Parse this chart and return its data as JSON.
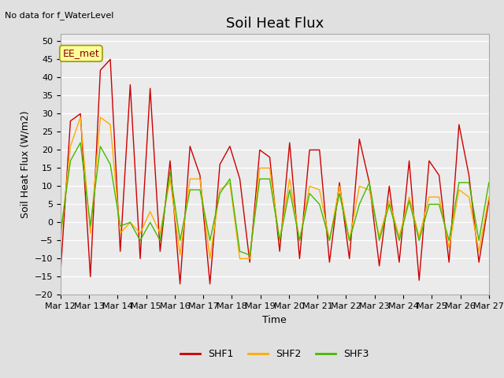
{
  "title": "Soil Heat Flux",
  "top_left_text": "No data for f_WaterLevel",
  "ylabel": "Soil Heat Flux (W/m2)",
  "xlabel": "Time",
  "legend_label": "EE_met",
  "ylim": [
    -20,
    52
  ],
  "yticks": [
    -20,
    -15,
    -10,
    -5,
    0,
    5,
    10,
    15,
    20,
    25,
    30,
    35,
    40,
    45,
    50
  ],
  "xtick_labels": [
    "Mar 12",
    "Mar 13",
    "Mar 14",
    "Mar 15",
    "Mar 16",
    "Mar 17",
    "Mar 18",
    "Mar 19",
    "Mar 20",
    "Mar 21",
    "Mar 22",
    "Mar 23",
    "Mar 24",
    "Mar 25",
    "Mar 26",
    "Mar 27"
  ],
  "shf1_color": "#cc0000",
  "shf2_color": "#ffaa00",
  "shf3_color": "#44bb00",
  "background_color": "#e0e0e0",
  "plot_bg_color": "#ebebeb",
  "grid_color": "#ffffff",
  "shf1": [
    -14,
    28,
    30,
    -15,
    42,
    45,
    -8,
    38,
    -10,
    37,
    -8,
    17,
    -17,
    21,
    13,
    -17,
    16,
    21,
    12,
    -11,
    20,
    18,
    -8,
    22,
    -10,
    20,
    20,
    -11,
    11,
    -10,
    23,
    11,
    -12,
    10,
    -11,
    17,
    -16,
    17,
    13,
    -11,
    27,
    13,
    -11,
    6
  ],
  "shf2": [
    -5,
    21,
    29,
    -3,
    29,
    27,
    -3,
    0,
    -3,
    3,
    -3,
    12,
    -9,
    12,
    12,
    -10,
    9,
    11,
    -10,
    -10,
    15,
    15,
    -5,
    12,
    -5,
    10,
    9,
    -5,
    10,
    -5,
    10,
    9,
    -4,
    6,
    -4,
    7,
    -4,
    7,
    7,
    -7,
    9,
    7,
    -8,
    7
  ],
  "shf3": [
    -3,
    17,
    22,
    -1,
    21,
    16,
    -1,
    0,
    -5,
    0,
    -5,
    14,
    -5,
    9,
    9,
    -5,
    8,
    12,
    -8,
    -9,
    12,
    12,
    -5,
    9,
    -5,
    8,
    5,
    -5,
    8,
    -5,
    5,
    11,
    -5,
    5,
    -5,
    6,
    -5,
    5,
    5,
    -5,
    11,
    11,
    -5,
    11
  ],
  "title_fontsize": 13,
  "axis_fontsize": 9,
  "tick_fontsize": 8,
  "legend_fontsize": 9
}
